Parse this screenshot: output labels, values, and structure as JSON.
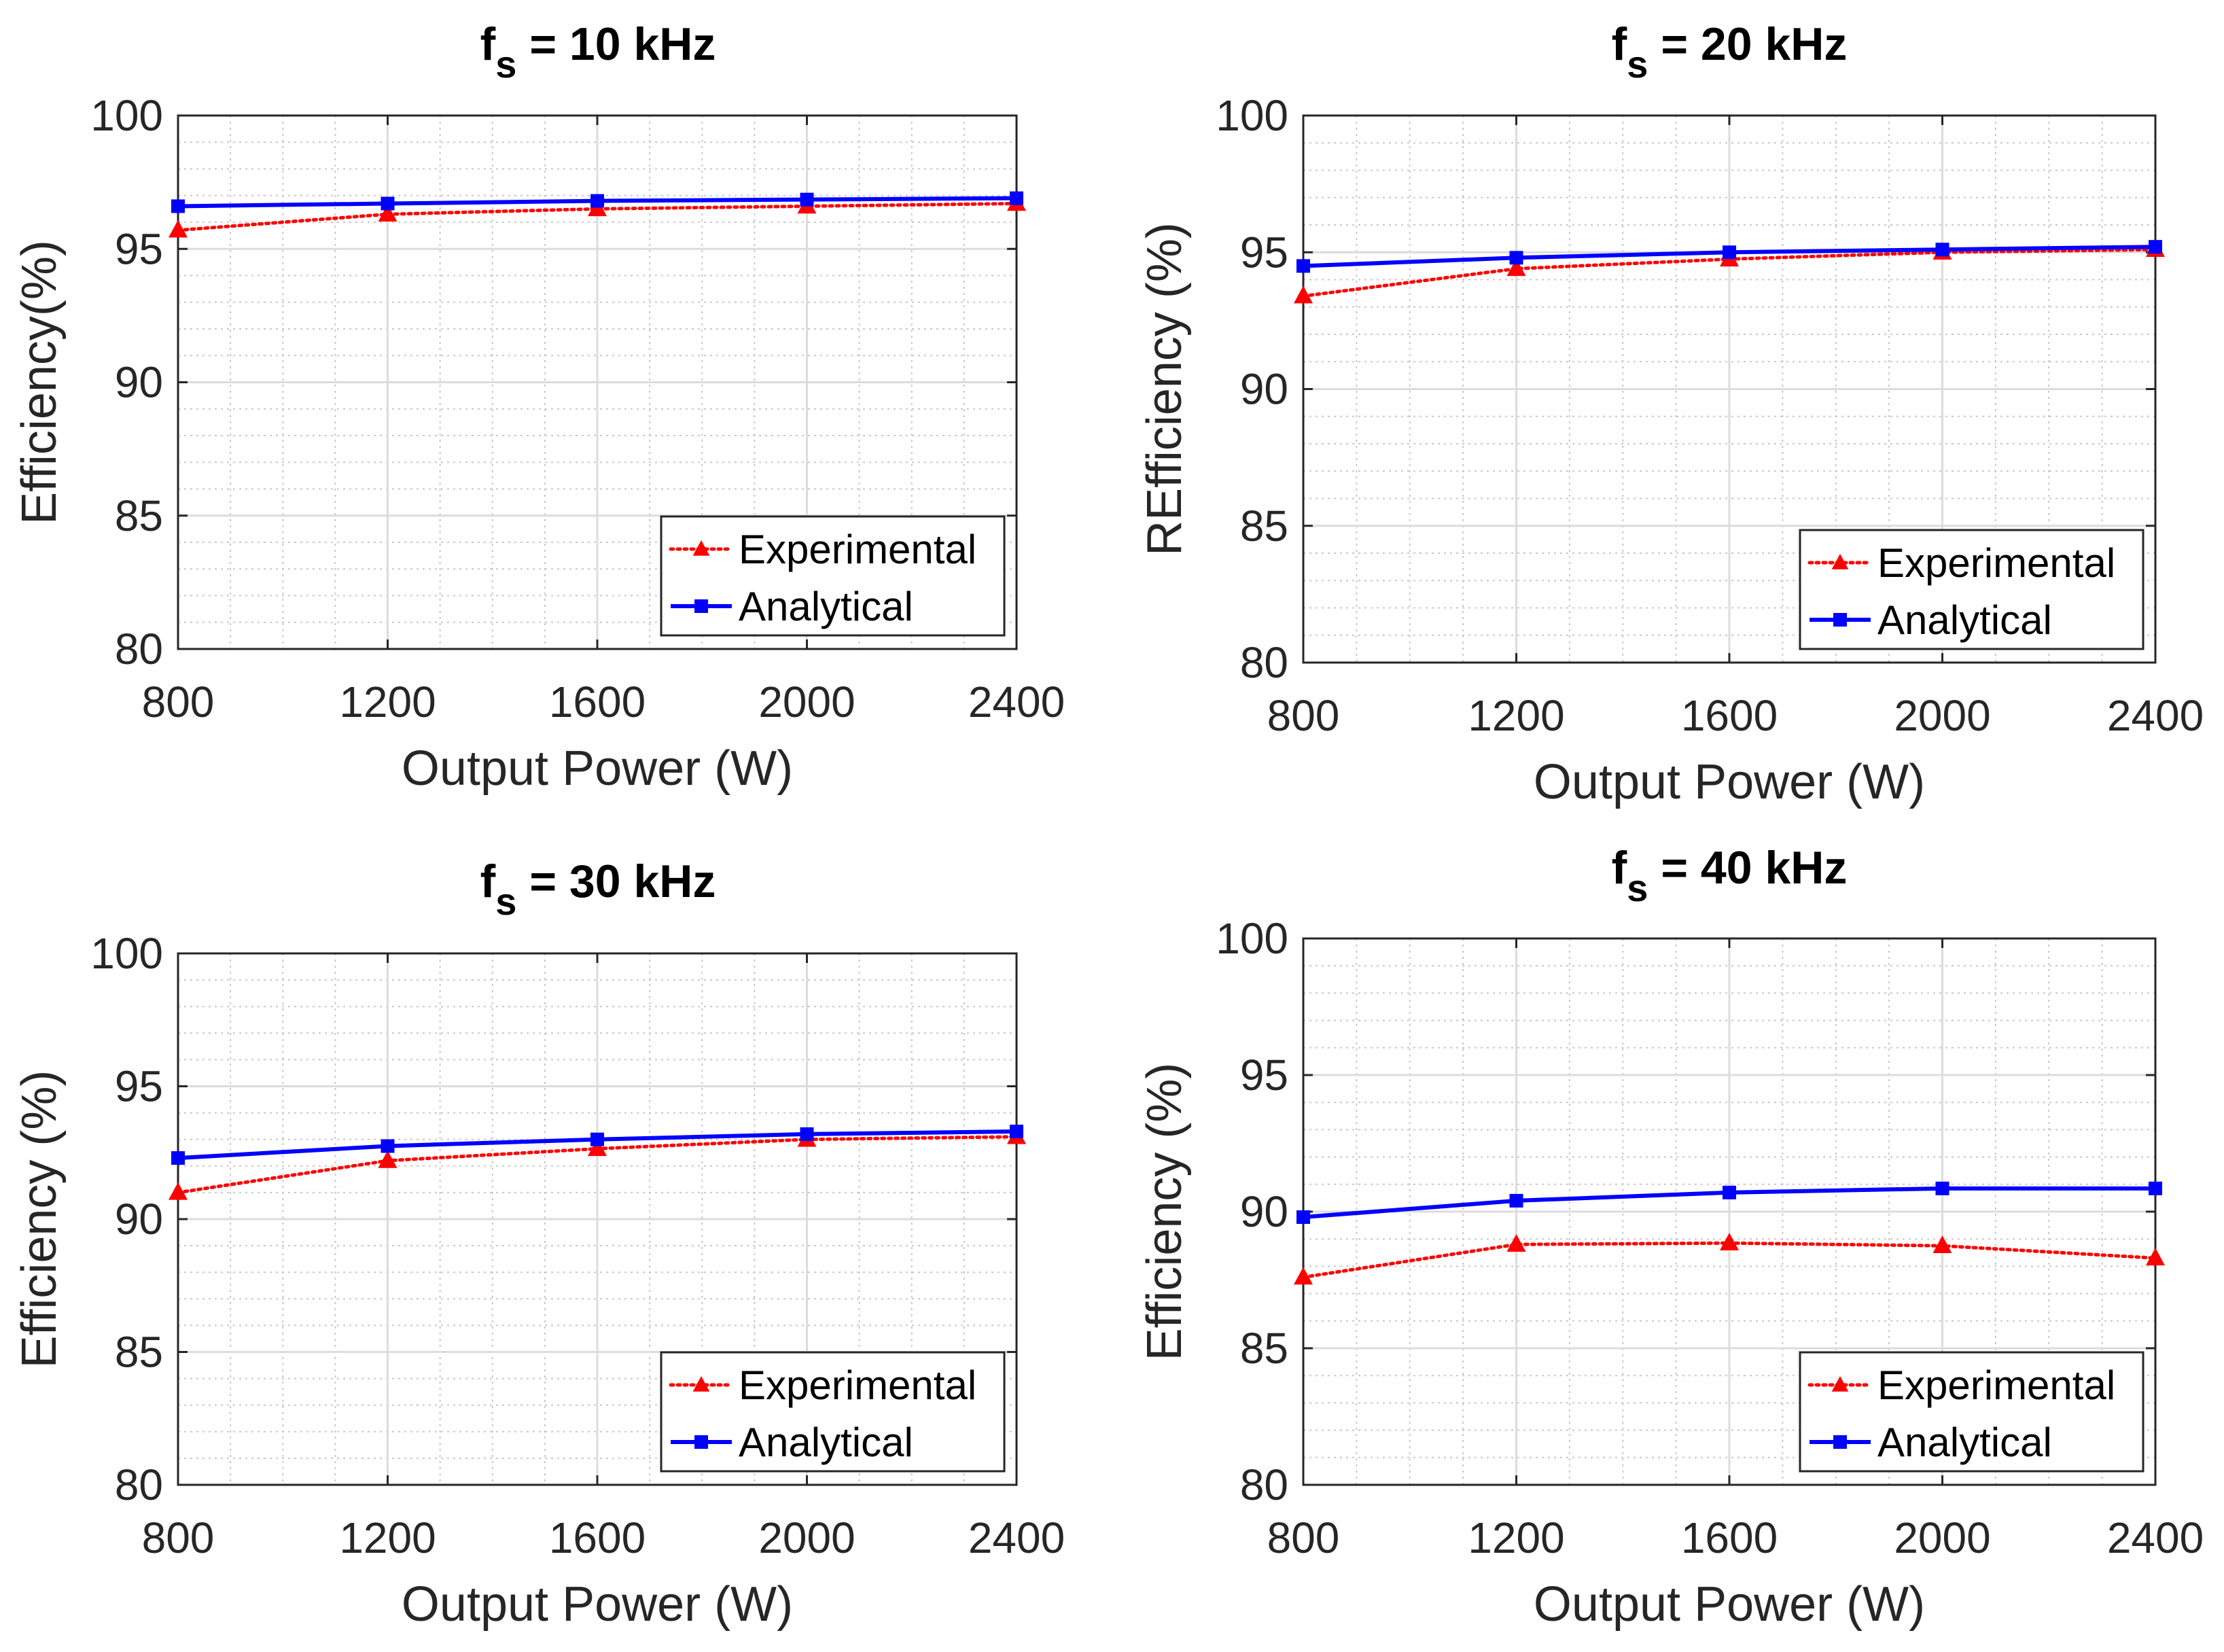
{
  "colors": {
    "experimental": "#ff0000",
    "analytical": "#0000ff",
    "grid_major": "#dcdcdc",
    "grid_minor": "#c8c8c8",
    "axis": "#262626"
  },
  "chart_data": [
    {
      "type": "line",
      "title_prefix": "f",
      "title_subscript": "s",
      "title_suffix": " = 10 kHz",
      "xlabel": "Output Power (W)",
      "ylabel": "Efficiency(%)",
      "x": [
        800,
        1200,
        1600,
        2000,
        2400
      ],
      "xticks": [
        "800",
        "1200",
        "1600",
        "2000",
        "2400"
      ],
      "yticks": [
        "80",
        "85",
        "90",
        "95",
        "100"
      ],
      "xlim": [
        800,
        2400
      ],
      "ylim": [
        80,
        100
      ],
      "grid": true,
      "legend_position": "bottom-right",
      "series": [
        {
          "name": "Experimental",
          "style": "dotted",
          "marker": "triangle",
          "values": [
            95.7,
            96.3,
            96.5,
            96.6,
            96.7
          ]
        },
        {
          "name": "Analytical",
          "style": "solid",
          "marker": "square",
          "values": [
            96.6,
            96.7,
            96.8,
            96.85,
            96.9
          ]
        }
      ]
    },
    {
      "type": "line",
      "title_prefix": "f",
      "title_subscript": "s",
      "title_suffix": " = 20 kHz",
      "xlabel": "Output Power (W)",
      "ylabel": "REfficiency (%)",
      "x": [
        800,
        1200,
        1600,
        2000,
        2400
      ],
      "xticks": [
        "800",
        "1200",
        "1600",
        "2000",
        "2400"
      ],
      "yticks": [
        "80",
        "85",
        "90",
        "95",
        "100"
      ],
      "xlim": [
        800,
        2400
      ],
      "ylim": [
        80,
        100
      ],
      "grid": true,
      "legend_position": "bottom-right",
      "series": [
        {
          "name": "Experimental",
          "style": "dotted",
          "marker": "triangle",
          "values": [
            93.4,
            94.4,
            94.75,
            95.0,
            95.1
          ]
        },
        {
          "name": "Analytical",
          "style": "solid",
          "marker": "square",
          "values": [
            94.5,
            94.8,
            95.0,
            95.1,
            95.2
          ]
        }
      ]
    },
    {
      "type": "line",
      "title_prefix": "f",
      "title_subscript": "s",
      "title_suffix": " = 30 kHz",
      "xlabel": "Output Power (W)",
      "ylabel": "Efficiency (%)",
      "x": [
        800,
        1200,
        1600,
        2000,
        2400
      ],
      "xticks": [
        "800",
        "1200",
        "1600",
        "2000",
        "2400"
      ],
      "yticks": [
        "80",
        "85",
        "90",
        "95",
        "100"
      ],
      "xlim": [
        800,
        2400
      ],
      "ylim": [
        80,
        100
      ],
      "grid": true,
      "legend_position": "bottom-right",
      "series": [
        {
          "name": "Experimental",
          "style": "dotted",
          "marker": "triangle",
          "values": [
            91.0,
            92.2,
            92.65,
            93.0,
            93.1
          ]
        },
        {
          "name": "Analytical",
          "style": "solid",
          "marker": "square",
          "values": [
            92.3,
            92.75,
            93.0,
            93.2,
            93.3
          ]
        }
      ]
    },
    {
      "type": "line",
      "title_prefix": "f",
      "title_subscript": "s",
      "title_suffix": " = 40 kHz",
      "xlabel": "Output Power (W)",
      "ylabel": "Efficiency (%)",
      "x": [
        800,
        1200,
        1600,
        2000,
        2400
      ],
      "xticks": [
        "800",
        "1200",
        "1600",
        "2000",
        "2400"
      ],
      "yticks": [
        "80",
        "85",
        "90",
        "95",
        "100"
      ],
      "xlim": [
        800,
        2400
      ],
      "ylim": [
        80,
        100
      ],
      "grid": true,
      "legend_position": "bottom-right",
      "series": [
        {
          "name": "Experimental",
          "style": "dotted",
          "marker": "triangle",
          "values": [
            87.6,
            88.8,
            88.85,
            88.75,
            88.3
          ]
        },
        {
          "name": "Analytical",
          "style": "solid",
          "marker": "square",
          "values": [
            89.8,
            90.4,
            90.7,
            90.85,
            90.85
          ]
        }
      ]
    }
  ]
}
